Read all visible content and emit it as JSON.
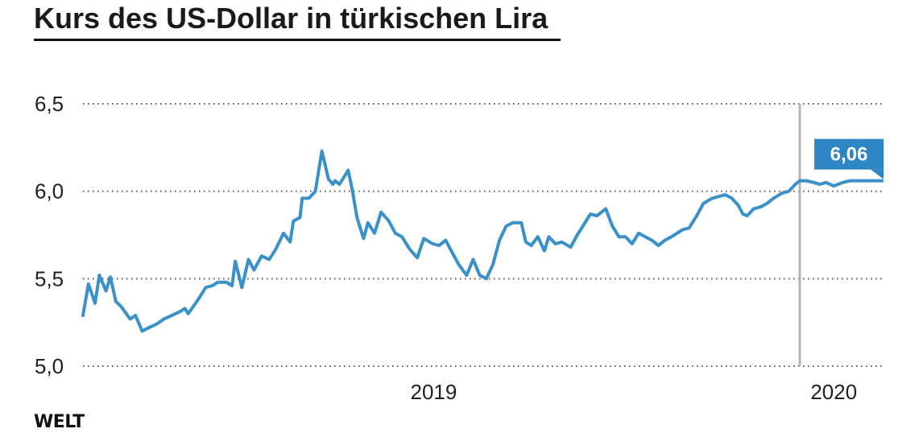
{
  "header": {
    "title": "Kurs des US-Dollar in türkischen Lira"
  },
  "footer": {
    "logo": "WELT"
  },
  "colors": {
    "line": "#3a90c8",
    "callout": "#2e87c4",
    "grid": "#555555",
    "marker": "#b5b5b5"
  },
  "chart_data": {
    "type": "line",
    "title": "Kurs des US-Dollar in türkischen Lira",
    "xlabel": "",
    "ylabel": "",
    "ylim": [
      5.0,
      6.5
    ],
    "yticks": [
      "6,5",
      "6,0",
      "5,5",
      "5,0"
    ],
    "ytick_values": [
      6.5,
      6.0,
      5.5,
      5.0
    ],
    "xticks": [
      {
        "label": "2019",
        "x": "2019-01-01"
      },
      {
        "label": "2020",
        "x": "2020-01-01"
      }
    ],
    "x_range": [
      "2018-02-15",
      "2020-02-14"
    ],
    "grid": true,
    "vertical_marker": "2019-12-01",
    "last_value_label": "6,06",
    "series": [
      {
        "x": [
          "2018-02-15",
          "2018-02-20",
          "2018-02-26",
          "2018-03-02",
          "2018-03-08",
          "2018-03-12",
          "2018-03-17",
          "2018-03-22",
          "2018-03-30",
          "2018-04-04",
          "2018-04-10",
          "2018-04-16",
          "2018-04-23",
          "2018-04-30",
          "2018-05-07",
          "2018-05-14",
          "2018-05-19",
          "2018-05-22",
          "2018-05-31",
          "2018-06-07",
          "2018-06-13",
          "2018-06-18",
          "2018-06-26",
          "2018-07-01",
          "2018-07-04",
          "2018-07-10",
          "2018-07-16",
          "2018-07-21",
          "2018-07-28",
          "2018-08-04",
          "2018-08-10",
          "2018-08-17",
          "2018-08-23",
          "2018-08-26",
          "2018-09-01",
          "2018-09-03",
          "2018-09-09",
          "2018-09-15",
          "2018-09-21",
          "2018-09-27",
          "2018-10-01",
          "2018-10-03",
          "2018-10-07",
          "2018-10-15",
          "2018-10-19",
          "2018-10-23",
          "2018-10-29",
          "2018-11-02",
          "2018-11-08",
          "2018-11-14",
          "2018-11-21",
          "2018-11-27",
          "2018-12-03",
          "2018-12-10",
          "2018-12-17",
          "2018-12-23",
          "2018-12-31",
          "2019-01-06",
          "2019-01-12",
          "2019-01-17",
          "2019-01-24",
          "2019-01-31",
          "2019-02-06",
          "2019-02-12",
          "2019-02-18",
          "2019-02-24",
          "2019-03-02",
          "2019-03-08",
          "2019-03-14",
          "2019-03-22",
          "2019-03-26",
          "2019-03-31",
          "2019-04-06",
          "2019-04-12",
          "2019-04-16",
          "2019-04-22",
          "2019-04-28",
          "2019-05-06",
          "2019-05-12",
          "2019-05-18",
          "2019-05-24",
          "2019-05-30",
          "2019-06-07",
          "2019-06-13",
          "2019-06-19",
          "2019-06-25",
          "2019-07-01",
          "2019-07-07",
          "2019-07-13",
          "2019-07-19",
          "2019-07-25",
          "2019-07-31",
          "2019-08-06",
          "2019-08-11",
          "2019-08-16",
          "2019-08-22",
          "2019-08-29",
          "2019-09-04",
          "2019-09-12",
          "2019-09-18",
          "2019-09-24",
          "2019-09-30",
          "2019-10-06",
          "2019-10-10",
          "2019-10-14",
          "2019-10-20",
          "2019-10-26",
          "2019-11-01",
          "2019-11-07",
          "2019-11-15",
          "2019-11-21",
          "2019-11-27",
          "2019-12-01",
          "2019-12-07",
          "2019-12-14",
          "2019-12-19",
          "2019-12-25",
          "2020-01-01",
          "2020-01-09",
          "2020-01-16",
          "2020-01-22",
          "2020-01-30",
          "2020-02-06",
          "2020-02-11",
          "2020-02-14"
        ],
        "values": [
          5.29,
          5.47,
          5.36,
          5.52,
          5.43,
          5.51,
          5.37,
          5.34,
          5.27,
          5.29,
          5.2,
          5.22,
          5.24,
          5.27,
          5.29,
          5.31,
          5.33,
          5.3,
          5.38,
          5.45,
          5.46,
          5.48,
          5.48,
          5.46,
          5.6,
          5.45,
          5.61,
          5.55,
          5.63,
          5.61,
          5.67,
          5.76,
          5.71,
          5.83,
          5.85,
          5.96,
          5.96,
          6.0,
          6.23,
          6.07,
          6.04,
          6.06,
          6.04,
          6.12,
          6.0,
          5.85,
          5.73,
          5.82,
          5.76,
          5.88,
          5.83,
          5.76,
          5.74,
          5.67,
          5.62,
          5.73,
          5.7,
          5.69,
          5.72,
          5.66,
          5.58,
          5.52,
          5.61,
          5.52,
          5.5,
          5.58,
          5.72,
          5.8,
          5.82,
          5.82,
          5.71,
          5.69,
          5.74,
          5.66,
          5.74,
          5.7,
          5.71,
          5.68,
          5.75,
          5.81,
          5.87,
          5.86,
          5.9,
          5.8,
          5.74,
          5.74,
          5.7,
          5.76,
          5.74,
          5.72,
          5.69,
          5.72,
          5.74,
          5.76,
          5.78,
          5.79,
          5.86,
          5.93,
          5.96,
          5.97,
          5.98,
          5.96,
          5.92,
          5.87,
          5.86,
          5.9,
          5.91,
          5.93,
          5.96,
          5.99,
          6.0,
          6.04,
          6.06,
          6.06,
          6.05,
          6.04,
          6.05,
          6.03,
          6.05,
          6.06,
          6.06,
          6.06,
          6.06,
          6.06,
          6.06
        ]
      }
    ]
  }
}
